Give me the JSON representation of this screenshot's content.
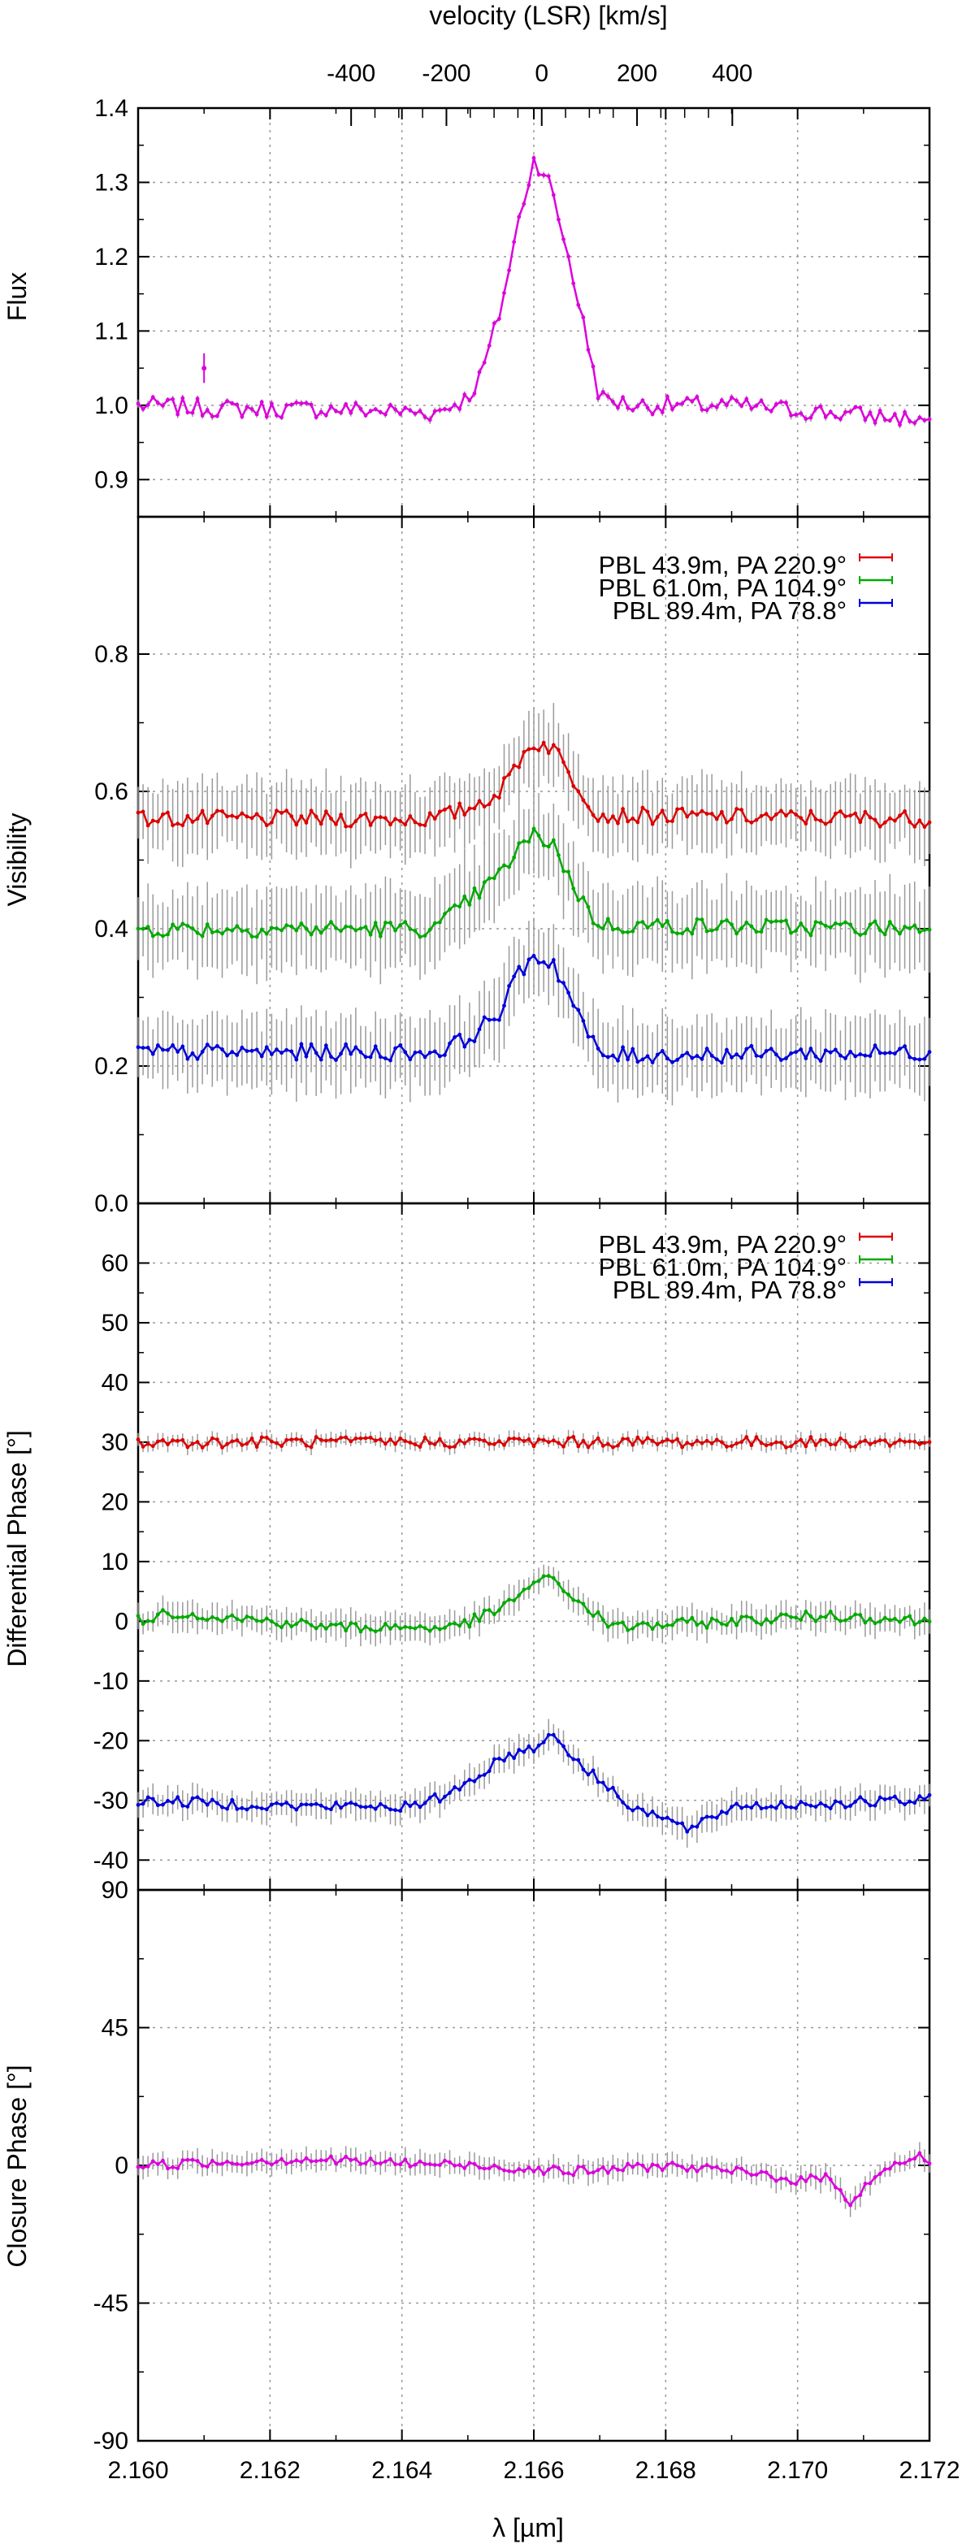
{
  "figure": {
    "top_axis_label": "velocity (LSR) [km/s]",
    "top_ticks": [
      "-400",
      "-200",
      "0",
      "200",
      "400"
    ],
    "top_tick_values": [
      -400,
      -200,
      0,
      200,
      400
    ],
    "line_center_um": 2.16612,
    "x_axis_label": "λ [µm]",
    "x_range": [
      2.16,
      2.172
    ],
    "x_ticks": [
      "2.160",
      "2.162",
      "2.164",
      "2.166",
      "2.168",
      "2.170",
      "2.172"
    ]
  },
  "chart_data": [
    {
      "id": "flux",
      "type": "line",
      "ylabel": "Flux",
      "ylim": [
        0.85,
        1.4
      ],
      "yticks": [
        "0.9",
        "1.0",
        "1.1",
        "1.2",
        "1.3",
        "1.4"
      ],
      "grid": true,
      "noise_amp": 0.012,
      "error_bar_marker": {
        "x": 2.161,
        "y": 1.05,
        "err": 0.02
      },
      "series": [
        {
          "name": "Flux",
          "color": "#dd00dd",
          "err": 0.004,
          "x": [
            2.16,
            2.1615,
            2.163,
            2.1645,
            2.165,
            2.1652,
            2.1655,
            2.1658,
            2.166,
            2.1662,
            2.1665,
            2.1668,
            2.167,
            2.1675,
            2.169,
            2.1705,
            2.172
          ],
          "y": [
            1.0,
            0.995,
            0.995,
            0.99,
            1.01,
            1.04,
            1.13,
            1.26,
            1.33,
            1.31,
            1.21,
            1.09,
            1.01,
            1.0,
            1.0,
            0.99,
            0.98
          ]
        }
      ]
    },
    {
      "id": "visibility",
      "type": "line",
      "ylabel": "Visibility",
      "ylim": [
        0.0,
        1.0
      ],
      "yticks": [
        "0.0",
        "0.2",
        "0.4",
        "0.6",
        "0.8"
      ],
      "grid": true,
      "noise_amp": 0.012,
      "series": [
        {
          "name": "PBL 43.9m, PA 220.9°",
          "color": "#dd0000",
          "err": 0.045,
          "x": [
            2.16,
            2.1645,
            2.165,
            2.1655,
            2.1658,
            2.166,
            2.1663,
            2.1665,
            2.1668,
            2.167,
            2.172
          ],
          "y": [
            0.56,
            0.56,
            0.575,
            0.6,
            0.65,
            0.67,
            0.665,
            0.63,
            0.59,
            0.565,
            0.56
          ]
        },
        {
          "name": "PBL 61.0m, PA 104.9°",
          "color": "#00aa00",
          "err": 0.05,
          "x": [
            2.16,
            2.1645,
            2.165,
            2.1655,
            2.1658,
            2.166,
            2.1663,
            2.1665,
            2.1668,
            2.167,
            2.172
          ],
          "y": [
            0.4,
            0.4,
            0.44,
            0.48,
            0.52,
            0.535,
            0.525,
            0.48,
            0.43,
            0.405,
            0.4
          ]
        },
        {
          "name": "PBL 89.4m, PA  78.8°",
          "color": "#0000dd",
          "err": 0.045,
          "x": [
            2.16,
            2.1645,
            2.165,
            2.1655,
            2.1658,
            2.166,
            2.1663,
            2.1665,
            2.1668,
            2.167,
            2.172
          ],
          "y": [
            0.22,
            0.22,
            0.24,
            0.28,
            0.34,
            0.36,
            0.35,
            0.31,
            0.25,
            0.215,
            0.22
          ]
        }
      ]
    },
    {
      "id": "diffphase",
      "type": "line",
      "ylabel": "Differential Phase [°]",
      "ylim": [
        -45,
        70
      ],
      "yticks": [
        "-40",
        "-30",
        "-20",
        "-10",
        "0",
        "10",
        "20",
        "30",
        "40",
        "50",
        "60"
      ],
      "grid": true,
      "noise_amp": 0.9,
      "series": [
        {
          "name": "PBL 43.9m, PA 220.9°",
          "color": "#dd0000",
          "err": 1.0,
          "x": [
            2.16,
            2.163,
            2.166,
            2.1665,
            2.168,
            2.17,
            2.172
          ],
          "y": [
            30,
            30,
            30,
            30,
            30,
            30,
            30
          ]
        },
        {
          "name": "PBL 61.0m, PA 104.9°",
          "color": "#00aa00",
          "err": 2.0,
          "x": [
            2.16,
            2.1605,
            2.163,
            2.1648,
            2.1655,
            2.166,
            2.1663,
            2.1667,
            2.1672,
            2.169,
            2.1705,
            2.172
          ],
          "y": [
            0,
            1.5,
            -1,
            -1,
            2,
            6.5,
            7,
            3,
            -1,
            0,
            1,
            0
          ]
        },
        {
          "name": "PBL 89.4m, PA  78.8°",
          "color": "#0000dd",
          "err": 2.0,
          "x": [
            2.16,
            2.1625,
            2.1643,
            2.165,
            2.1655,
            2.166,
            2.1663,
            2.1668,
            2.1675,
            2.1684,
            2.169,
            2.172
          ],
          "y": [
            -30,
            -31,
            -31,
            -27,
            -23,
            -21,
            -19,
            -25,
            -31,
            -35,
            -31,
            -30
          ]
        }
      ]
    },
    {
      "id": "closurephase",
      "type": "line",
      "ylabel": "Closure Phase [°]",
      "ylim": [
        -90,
        90
      ],
      "yticks": [
        "-90",
        "-45",
        "0",
        "45",
        "90"
      ],
      "grid": true,
      "noise_amp": 1.5,
      "series": [
        {
          "name": "Closure Phase",
          "color": "#dd00dd",
          "err": 3.0,
          "x": [
            2.16,
            2.1625,
            2.165,
            2.1667,
            2.168,
            2.1695,
            2.17,
            2.1705,
            2.1708,
            2.1712,
            2.1718,
            2.172
          ],
          "y": [
            0,
            2,
            0,
            -2,
            0,
            -3,
            -5,
            -4,
            -12,
            -3,
            3,
            2
          ]
        }
      ]
    }
  ]
}
